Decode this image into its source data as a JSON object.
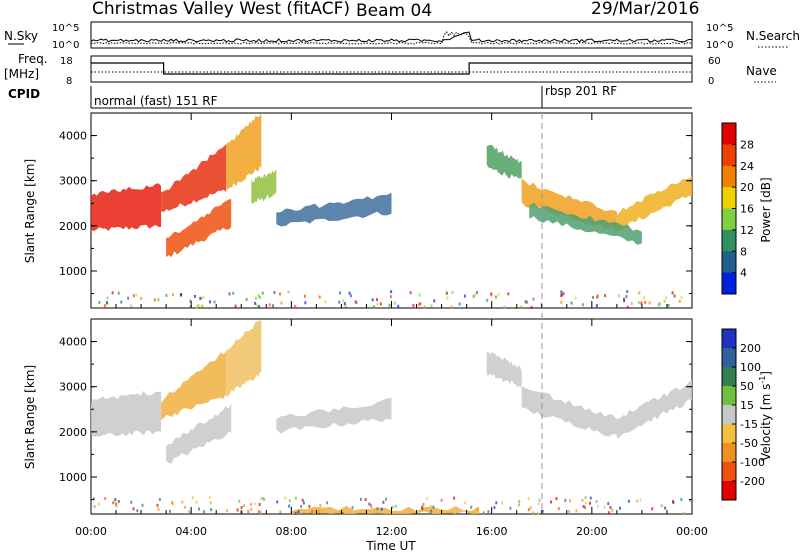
{
  "header": {
    "site": "Christmas Valley West (fitACF)",
    "beam": "Beam 04",
    "date": "29/Mar/2016"
  },
  "top_panels": {
    "nsky_label": "N.Sky",
    "nsky_ticks": [
      "10^5",
      "10^0"
    ],
    "nsearch_label": "N.Search",
    "nsearch_ticks": [
      "10^5",
      "10^0"
    ],
    "freq_label": "Freq.",
    "freq_unit": "[MHz]",
    "freq_ticks": [
      "18",
      "8"
    ],
    "nave_label": "Nave",
    "nave_ticks": [
      "60",
      "0"
    ],
    "cpid_label": "CPID",
    "cpid_modes": [
      {
        "name": "normal (fast) 151 RF",
        "start_h": 0
      },
      {
        "name": "rbsp 201 RF",
        "start_h": 18.1
      }
    ]
  },
  "chart_data": [
    {
      "type": "heatmap",
      "name": "power",
      "ylabel": "Slant Range [km]",
      "yticks": [
        "4000",
        "3000",
        "2000",
        "1000"
      ],
      "ylim": [
        180,
        4500
      ],
      "xlim": [
        0,
        24
      ],
      "colorbar": {
        "label": "Power [dB]",
        "ticks": [
          "28",
          "24",
          "20",
          "16",
          "12",
          "8",
          "4"
        ],
        "values": [
          28,
          24,
          20,
          16,
          12,
          8,
          4
        ],
        "colors": [
          "#e00000",
          "#f04000",
          "#f08000",
          "#f0d000",
          "#80d040",
          "#309060",
          "#206090",
          "#0020e0"
        ]
      },
      "echo_regions": [
        {
          "start_h": 0.0,
          "end_h": 2.8,
          "range_from": [
            1900,
            2700
          ],
          "range_to": [
            2000,
            2900
          ],
          "color": "#e82010"
        },
        {
          "start_h": 2.8,
          "end_h": 5.4,
          "range_from": [
            2300,
            2700
          ],
          "range_to": [
            2800,
            3800
          ],
          "color": "#e83010"
        },
        {
          "start_h": 3.0,
          "end_h": 5.6,
          "range_from": [
            1300,
            1700
          ],
          "range_to": [
            2000,
            2600
          ],
          "color": "#f05010"
        },
        {
          "start_h": 5.4,
          "end_h": 6.8,
          "range_from": [
            2800,
            3800
          ],
          "range_to": [
            3300,
            4500
          ],
          "color": "#f0a020"
        },
        {
          "start_h": 6.4,
          "end_h": 7.4,
          "range_from": [
            2500,
            3000
          ],
          "range_to": [
            2700,
            3200
          ],
          "color": "#90c040"
        },
        {
          "start_h": 7.4,
          "end_h": 12.0,
          "range_from": [
            2000,
            2300
          ],
          "range_to": [
            2300,
            2700
          ],
          "color": "#4070a0"
        },
        {
          "start_h": 15.8,
          "end_h": 17.2,
          "range_from": [
            3300,
            3800
          ],
          "range_to": [
            3000,
            3400
          ],
          "color": "#50a060"
        },
        {
          "start_h": 17.2,
          "end_h": 21.0,
          "range_from": [
            2500,
            3000
          ],
          "range_to": [
            1900,
            2300
          ],
          "color": "#f0a020"
        },
        {
          "start_h": 21.0,
          "end_h": 24.0,
          "range_from": [
            1900,
            2300
          ],
          "range_to": [
            2700,
            3100
          ],
          "color": "#f0b020"
        },
        {
          "start_h": 17.5,
          "end_h": 22.0,
          "range_from": [
            2200,
            2500
          ],
          "range_to": [
            1600,
            1900
          ],
          "color": "#50a070"
        }
      ]
    },
    {
      "type": "heatmap",
      "name": "velocity",
      "ylabel": "Slant Range [km]",
      "yticks": [
        "4000",
        "3000",
        "2000",
        "1000"
      ],
      "ylim": [
        180,
        4500
      ],
      "xlim": [
        0,
        24
      ],
      "xlabel": "Time UT",
      "xticks": [
        "00:00",
        "04:00",
        "08:00",
        "12:00",
        "16:00",
        "20:00",
        "00:00"
      ],
      "colorbar": {
        "label": "Velocity [m s",
        "label_sup": "-1",
        "label_end": "]",
        "ticks": [
          "200",
          "100",
          "50",
          "15",
          "-15",
          "-50",
          "-100",
          "-200"
        ],
        "values": [
          200,
          100,
          50,
          15,
          -15,
          -50,
          -100,
          -200
        ],
        "colors": [
          "#2030c0",
          "#3060a0",
          "#308050",
          "#70c040",
          "#c8c8c8",
          "#f0c040",
          "#f09020",
          "#f05010",
          "#e00000"
        ]
      },
      "echo_regions": [
        {
          "start_h": 0.0,
          "end_h": 2.8,
          "range_from": [
            1900,
            2700
          ],
          "range_to": [
            2000,
            2900
          ],
          "color": "#c8c8c8"
        },
        {
          "start_h": 2.8,
          "end_h": 5.4,
          "range_from": [
            2300,
            2700
          ],
          "range_to": [
            2800,
            3800
          ],
          "color": "#f0b040"
        },
        {
          "start_h": 3.0,
          "end_h": 5.6,
          "range_from": [
            1300,
            1700
          ],
          "range_to": [
            2000,
            2600
          ],
          "color": "#c8c8c8"
        },
        {
          "start_h": 5.4,
          "end_h": 6.8,
          "range_from": [
            2800,
            3800
          ],
          "range_to": [
            3300,
            4500
          ],
          "color": "#f0c060"
        },
        {
          "start_h": 7.4,
          "end_h": 12.0,
          "range_from": [
            2000,
            2300
          ],
          "range_to": [
            2300,
            2700
          ],
          "color": "#c8c8c8"
        },
        {
          "start_h": 15.8,
          "end_h": 17.2,
          "range_from": [
            3300,
            3800
          ],
          "range_to": [
            3000,
            3400
          ],
          "color": "#c8c8c8"
        },
        {
          "start_h": 17.2,
          "end_h": 21.0,
          "range_from": [
            2500,
            3000
          ],
          "range_to": [
            1900,
            2300
          ],
          "color": "#c8c8c8"
        },
        {
          "start_h": 21.0,
          "end_h": 24.0,
          "range_from": [
            1900,
            2300
          ],
          "range_to": [
            2700,
            3100
          ],
          "color": "#c8c8c8"
        },
        {
          "start_h": 8.0,
          "end_h": 15.5,
          "range_from": [
            180,
            300
          ],
          "range_to": [
            180,
            300
          ],
          "color": "#f0b040"
        }
      ]
    }
  ]
}
